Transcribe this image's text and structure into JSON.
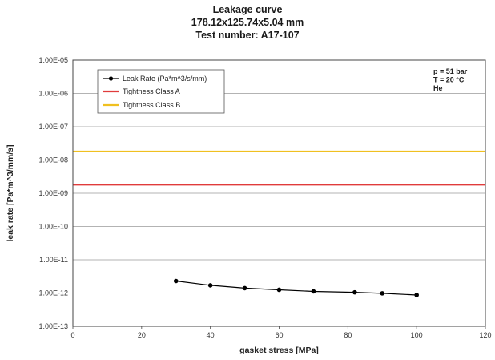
{
  "chart_data": {
    "type": "line",
    "title": "Leakage curve",
    "subtitle_lines": [
      "178.12x125.74x5.04 mm",
      "Test number: A17-107"
    ],
    "xlabel": "gasket stress [MPa]",
    "ylabel": "leak rate [Pa*m^3/mm/s]",
    "xlim": [
      0,
      120
    ],
    "x_ticks": [
      "0",
      "20",
      "40",
      "60",
      "80",
      "100",
      "120"
    ],
    "x_tick_values": [
      0,
      20,
      40,
      60,
      80,
      100,
      120
    ],
    "y_scale": "log",
    "ylim": [
      1e-13,
      1e-05
    ],
    "y_ticks": [
      "1.00E-05",
      "1.00E-06",
      "1.00E-07",
      "1.00E-08",
      "1.00E-09",
      "1.00E-10",
      "1.00E-11",
      "1.00E-12",
      "1.00E-13"
    ],
    "y_tick_values": [
      1e-05,
      1e-06,
      1e-07,
      1e-08,
      1e-09,
      1e-10,
      1e-11,
      1e-12,
      1e-13
    ],
    "grid": "horizontal",
    "legend_position": "top-left",
    "series": [
      {
        "name": "Leak Rate (Pa*m^3/s/mm)",
        "kind": "line-markers",
        "color": "#000000",
        "x": [
          30,
          40,
          50,
          60,
          70,
          82,
          90,
          100
        ],
        "y": [
          2.3e-12,
          1.7e-12,
          1.4e-12,
          1.25e-12,
          1.12e-12,
          1.05e-12,
          9.8e-13,
          8.7e-13
        ]
      },
      {
        "name": "Tightness Class A",
        "kind": "hline",
        "color": "#e03c3c",
        "y": 1.8e-09
      },
      {
        "name": "Tightness Class B",
        "kind": "hline",
        "color": "#f0c020",
        "y": 1.8e-08
      }
    ],
    "annotations": [
      "p = 51 bar",
      "T = 20 °C",
      "He"
    ]
  }
}
